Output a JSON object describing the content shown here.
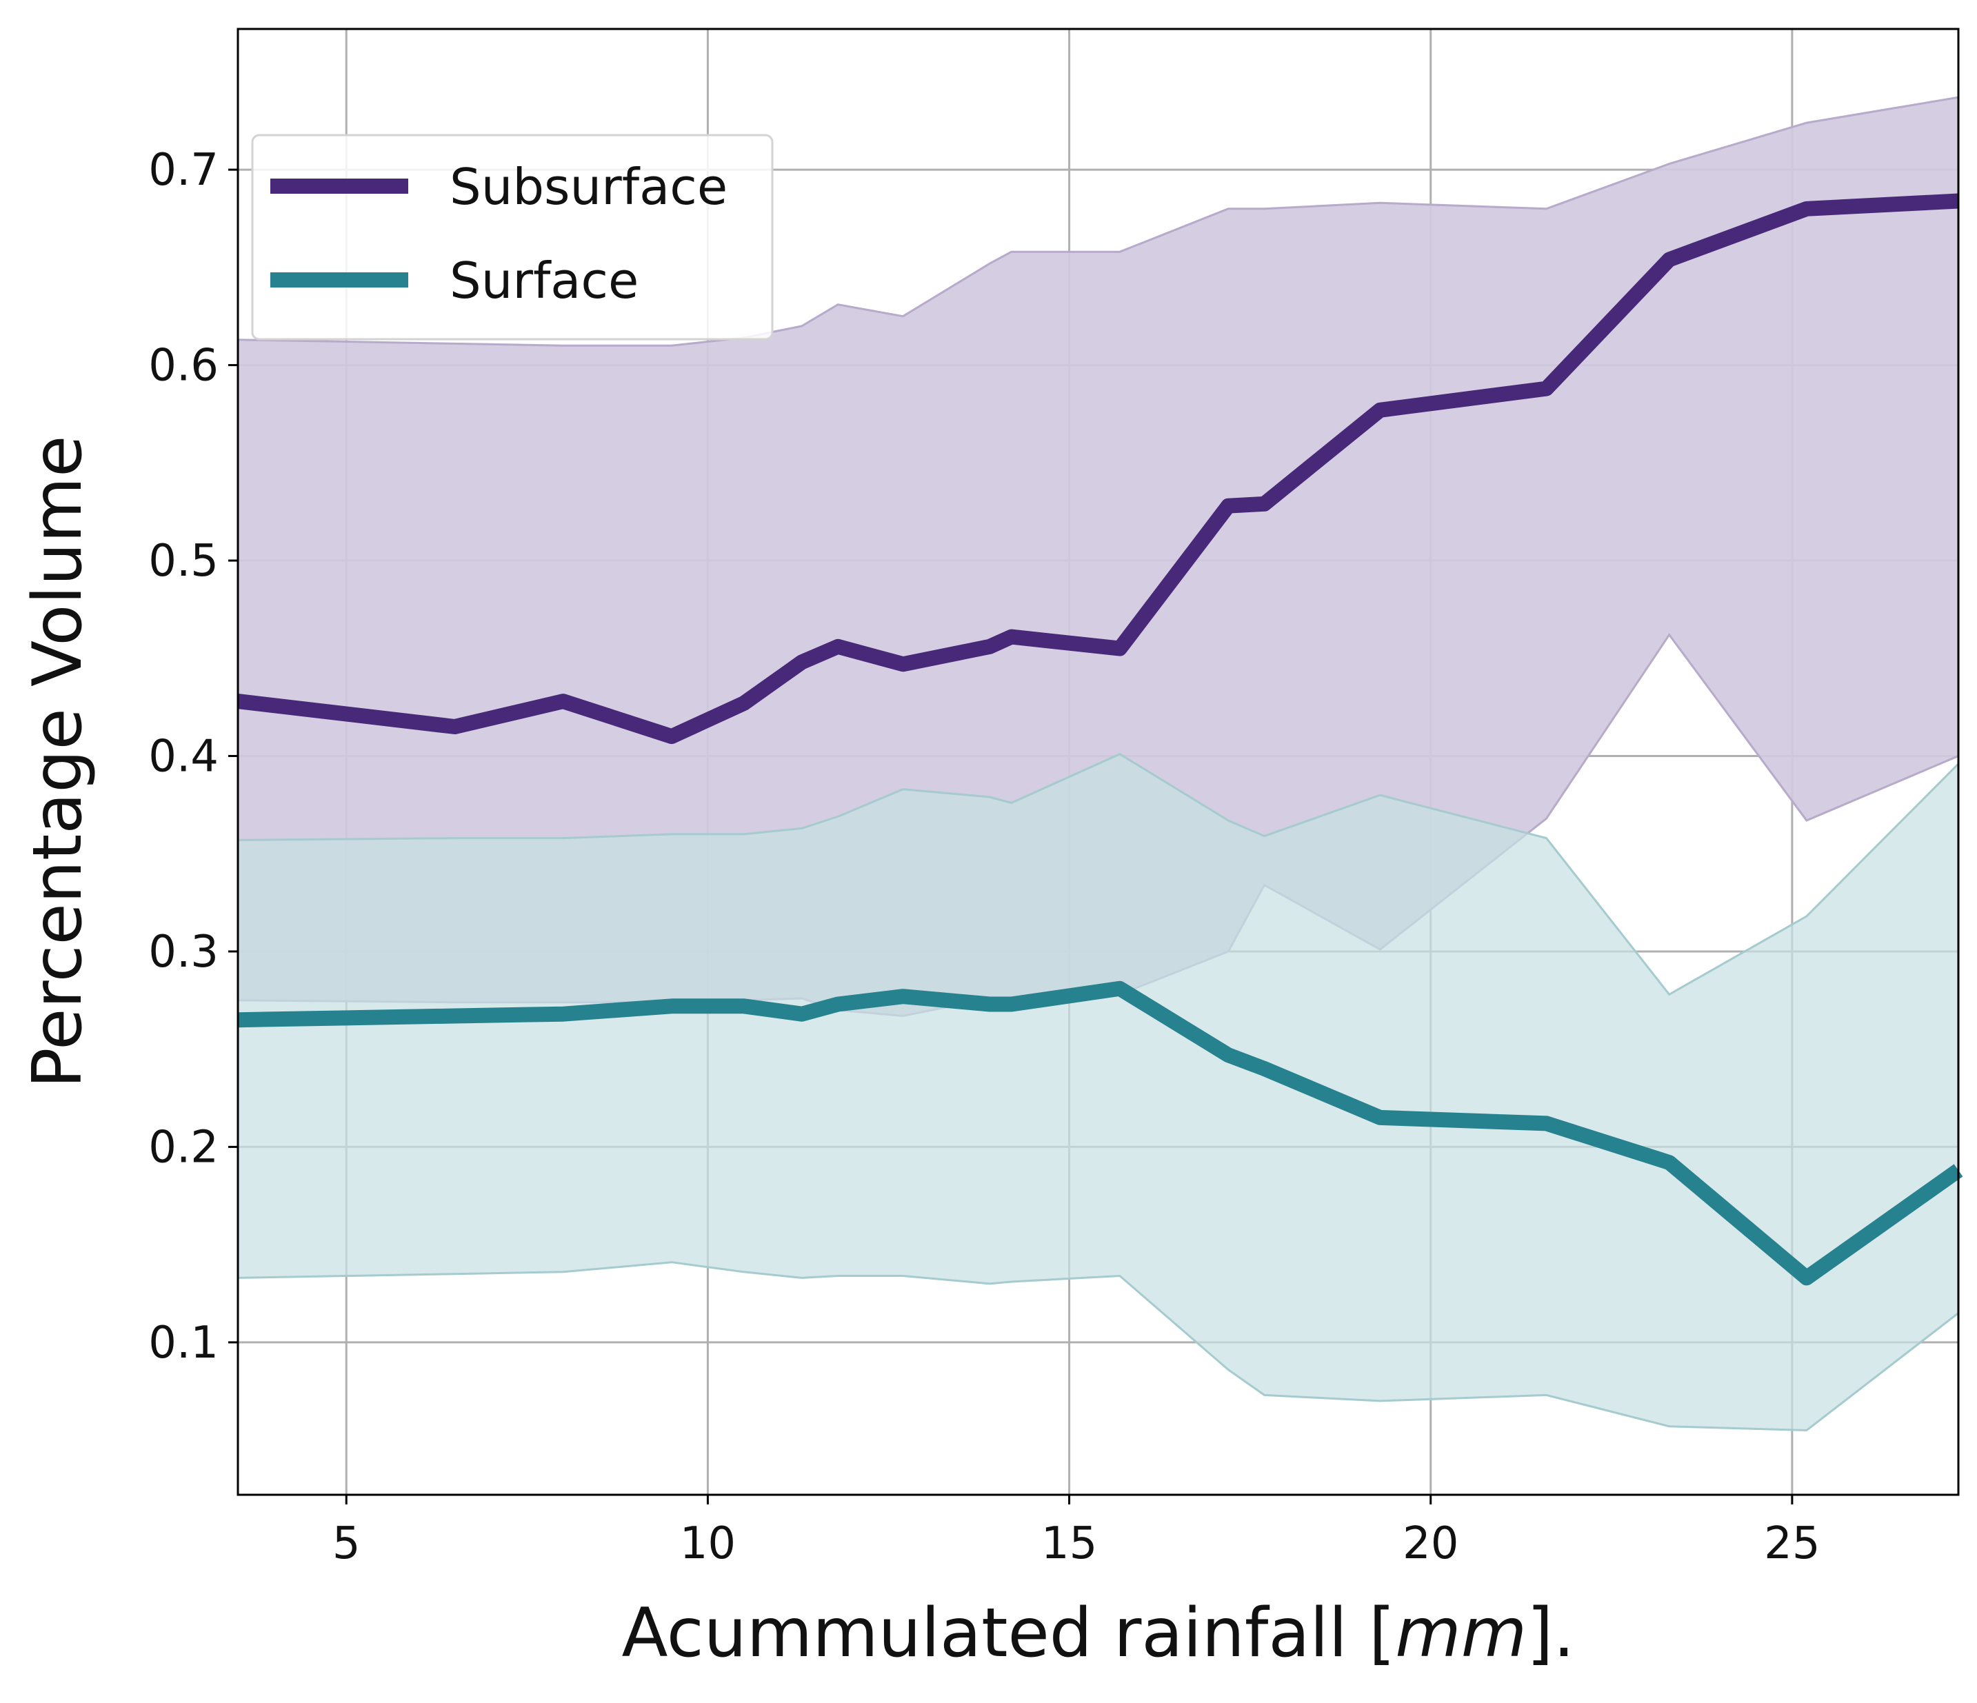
{
  "chart_data": {
    "type": "line",
    "title": "",
    "xlabel": "Acummulated rainfall [",
    "xlabel_unit": "mm",
    "xlabel_suffix": "].",
    "ylabel": "Percentage Volume",
    "xlim": [
      3.5,
      27.3
    ],
    "ylim": [
      0.022,
      0.772
    ],
    "x_ticks": [
      5,
      10,
      15,
      20,
      25
    ],
    "x_tick_labels": [
      "5",
      "10",
      "15",
      "20",
      "25"
    ],
    "y_ticks": [
      0.1,
      0.2,
      0.3,
      0.4,
      0.5,
      0.6,
      0.7
    ],
    "y_tick_labels": [
      "0.1",
      "0.2",
      "0.3",
      "0.4",
      "0.5",
      "0.6",
      "0.7"
    ],
    "grid": true,
    "legend_position": "upper-left",
    "series": [
      {
        "name": "Subsurface",
        "color": "#482878",
        "band_color": "#d1c9de",
        "band_edge_color": "#b7aacb",
        "x": [
          3.5,
          6.5,
          8.0,
          9.5,
          10.5,
          11.3,
          11.8,
          12.7,
          13.9,
          14.2,
          15.7,
          17.2,
          17.7,
          19.3,
          21.6,
          23.3,
          25.2,
          27.3
        ],
        "values": [
          0.428,
          0.415,
          0.428,
          0.41,
          0.427,
          0.448,
          0.456,
          0.447,
          0.456,
          0.461,
          0.455,
          0.528,
          0.529,
          0.577,
          0.588,
          0.654,
          0.68,
          0.684
        ],
        "upper": [
          0.613,
          0.611,
          0.61,
          0.61,
          0.614,
          0.62,
          0.631,
          0.625,
          0.652,
          0.658,
          0.658,
          0.68,
          0.68,
          0.683,
          0.68,
          0.703,
          0.724,
          0.737
        ],
        "lower": [
          0.275,
          0.274,
          0.274,
          0.274,
          0.275,
          0.276,
          0.27,
          0.267,
          0.276,
          0.276,
          0.278,
          0.3,
          0.334,
          0.301,
          0.368,
          0.462,
          0.367,
          0.4
        ]
      },
      {
        "name": "Surface",
        "color": "#26828e",
        "band_color": "#c8e0e2",
        "band_edge_color": "#a5cbcf",
        "x": [
          3.5,
          6.5,
          8.0,
          9.5,
          10.5,
          11.3,
          11.8,
          12.7,
          13.9,
          14.2,
          15.7,
          17.2,
          17.7,
          19.3,
          21.6,
          23.3,
          25.2,
          27.3
        ],
        "values": [
          0.265,
          0.267,
          0.268,
          0.272,
          0.272,
          0.268,
          0.273,
          0.277,
          0.273,
          0.273,
          0.281,
          0.247,
          0.24,
          0.215,
          0.212,
          0.192,
          0.133,
          0.188
        ],
        "upper": [
          0.357,
          0.358,
          0.358,
          0.36,
          0.36,
          0.363,
          0.369,
          0.383,
          0.379,
          0.376,
          0.401,
          0.367,
          0.359,
          0.38,
          0.358,
          0.278,
          0.318,
          0.396
        ],
        "lower": [
          0.133,
          0.135,
          0.136,
          0.141,
          0.136,
          0.133,
          0.134,
          0.134,
          0.13,
          0.131,
          0.134,
          0.086,
          0.073,
          0.07,
          0.073,
          0.057,
          0.055,
          0.115
        ]
      }
    ]
  }
}
